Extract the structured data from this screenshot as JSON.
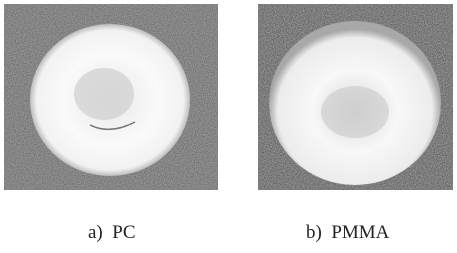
{
  "panels": [
    {
      "caption": "a)  PC"
    },
    {
      "caption": "b)  PMMA"
    }
  ]
}
